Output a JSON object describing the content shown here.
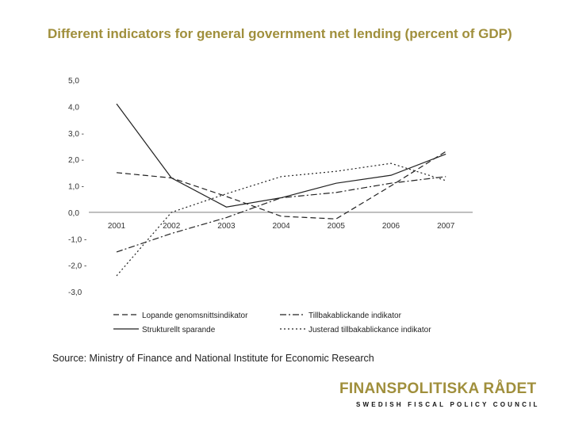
{
  "chart_data": {
    "type": "line",
    "title": "Different indicators for general government net lending (percent of GDP)",
    "xlabel": "",
    "ylabel": "",
    "x": [
      "2001",
      "2002",
      "2003",
      "2004",
      "2005",
      "2006",
      "2007"
    ],
    "y_ticks": [
      "5,0",
      "4,0",
      "3,0 -",
      "2,0 -",
      "1,0 -",
      "0,0",
      "-1,0 -",
      "-2,0 -",
      "-3,0"
    ],
    "ylim": [
      -3,
      5
    ],
    "grid": false,
    "legend_position": "bottom",
    "series": [
      {
        "name": "Lopande genomsnittsindikator",
        "dash": "7,4",
        "values": [
          1.5,
          1.3,
          0.6,
          -0.15,
          -0.25,
          1.0,
          2.3
        ]
      },
      {
        "name": "Tillbakablickande indikator",
        "dash": "8,3,2,3",
        "values": [
          -1.5,
          -0.8,
          -0.2,
          0.55,
          0.75,
          1.1,
          1.35
        ]
      },
      {
        "name": "Strukturellt sparande",
        "dash": "",
        "values": [
          4.1,
          1.3,
          0.2,
          0.55,
          1.1,
          1.4,
          2.2
        ]
      },
      {
        "name": "Justerad tillbakablickance indikator",
        "dash": "2,3",
        "values": [
          -2.4,
          0.0,
          0.7,
          1.35,
          1.55,
          1.85,
          1.2
        ]
      }
    ]
  },
  "source_text": "Source: Ministry of Finance and National Institute for Economic Research",
  "logo": {
    "name": "FINANSPOLITISKA RÅDET",
    "subtitle": "SWEDISH FISCAL POLICY COUNCIL"
  }
}
